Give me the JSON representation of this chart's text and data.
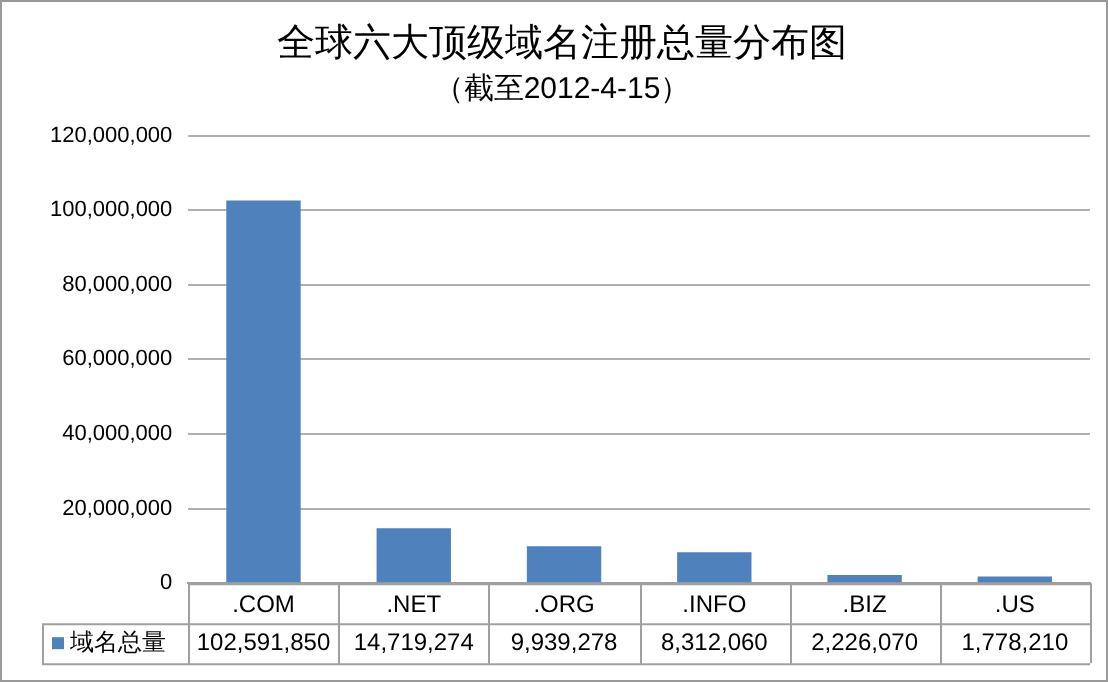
{
  "chart_data": {
    "type": "bar",
    "title": "全球六大顶级域名注册总量分布图",
    "subtitle": "（截至2012-4-15）",
    "categories": [
      ".COM",
      ".NET",
      ".ORG",
      ".INFO",
      ".BIZ",
      ".US"
    ],
    "series": [
      {
        "name": "域名总量",
        "color": "#4f81bd",
        "values": [
          102591850,
          14719274,
          9939278,
          8312060,
          2226070,
          1778210
        ],
        "value_labels": [
          "102,591,850",
          "14,719,274",
          "9,939,278",
          "8,312,060",
          "2,226,070",
          "1,778,210"
        ]
      }
    ],
    "ylim": [
      0,
      120000000
    ],
    "yticks": [
      0,
      {
        "value": 20000000,
        "label": "20,000,000"
      },
      {
        "value": 40000000,
        "label": "40,000,000"
      },
      {
        "value": 60000000,
        "label": "60,000,000"
      },
      {
        "value": 80000000,
        "label": "80,000,000"
      },
      {
        "value": 100000000,
        "label": "100,000,000"
      },
      {
        "value": 120000000,
        "label": "120,000,000"
      }
    ],
    "grid": "y",
    "legend": "bottom"
  }
}
